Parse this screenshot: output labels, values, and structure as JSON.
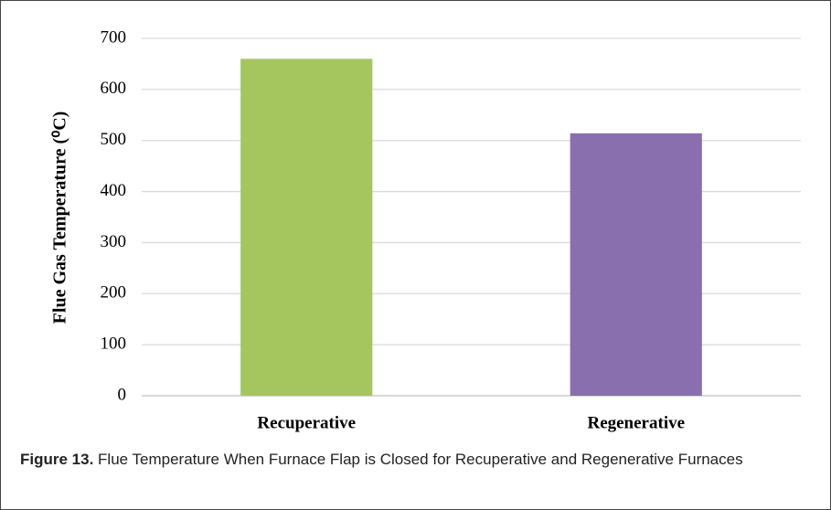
{
  "chart_data": {
    "type": "bar",
    "ylabel": "Flue Gas Temperature (⁰C)",
    "categories": [
      "Recuperative",
      "Regenerative"
    ],
    "values": [
      660,
      514
    ],
    "colors": [
      "#a5c65f",
      "#8a6faf"
    ],
    "ylim": [
      0,
      700
    ],
    "yticks": [
      0,
      100,
      200,
      300,
      400,
      500,
      600,
      700
    ],
    "grid": true
  },
  "caption": {
    "label": "Figure 13.",
    "text": "Flue Temperature When Furnace Flap is Closed for Recuperative and Regenerative Furnaces"
  }
}
